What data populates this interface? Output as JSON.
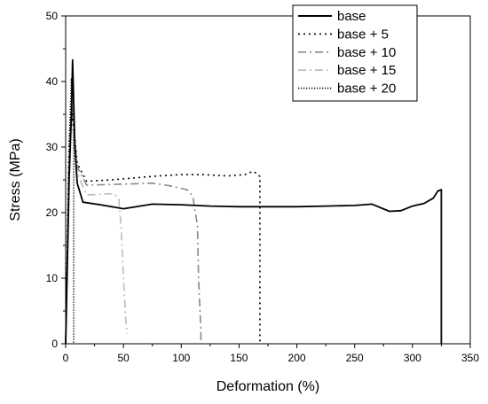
{
  "chart_data": {
    "type": "line",
    "title": "",
    "xlabel": "Deformation (%)",
    "ylabel": "Stress (MPa)",
    "xlim": [
      0,
      350
    ],
    "ylim": [
      0,
      50
    ],
    "xticks": [
      0,
      50,
      100,
      150,
      200,
      250,
      300,
      350
    ],
    "yticks": [
      0,
      10,
      20,
      30,
      40,
      50
    ],
    "grid": false,
    "legend_position": "top-right",
    "series": [
      {
        "name": "base",
        "color": "#000000",
        "dash": "solid",
        "x": [
          0,
          3,
          5,
          6,
          8,
          10,
          15,
          30,
          50,
          75,
          100,
          125,
          150,
          175,
          200,
          225,
          250,
          265,
          280,
          290,
          300,
          310,
          318,
          322,
          325,
          325
        ],
        "y": [
          0,
          25,
          35,
          43.3,
          30,
          24.5,
          21.6,
          21.2,
          20.6,
          21.3,
          21.2,
          21.0,
          20.9,
          20.9,
          20.9,
          21.0,
          21.1,
          21.3,
          20.2,
          20.3,
          21.0,
          21.4,
          22.2,
          23.3,
          23.5,
          0
        ]
      },
      {
        "name": "base + 5",
        "color": "#000000",
        "dash": "dot",
        "x": [
          0,
          3,
          5,
          7,
          10,
          18,
          40,
          60,
          80,
          100,
          120,
          140,
          155,
          162,
          165,
          168,
          168
        ],
        "y": [
          0,
          30,
          36.2,
          33,
          27.5,
          24.8,
          25.0,
          25.3,
          25.6,
          25.8,
          25.8,
          25.6,
          25.8,
          26.3,
          26.0,
          25.5,
          0
        ]
      },
      {
        "name": "base + 10",
        "color": "#888888",
        "dash": "dashdot",
        "x": [
          0,
          3,
          5,
          7,
          10,
          18,
          40,
          60,
          75,
          90,
          105,
          110,
          114,
          115,
          117,
          117
        ],
        "y": [
          0,
          28,
          35.5,
          33,
          27,
          24.2,
          24.3,
          24.4,
          24.5,
          24.1,
          23.5,
          22.5,
          18,
          10,
          2,
          0
        ]
      },
      {
        "name": "base + 15",
        "color": "#bbbbbb",
        "dash": "dashdot",
        "x": [
          0,
          3,
          5,
          7,
          10,
          18,
          30,
          42,
          46,
          48,
          50,
          52,
          53
        ],
        "y": [
          0,
          28,
          35.5,
          32,
          26,
          22.7,
          22.8,
          22.9,
          22,
          18,
          10,
          4,
          1.5
        ]
      },
      {
        "name": "base + 20",
        "color": "#000000",
        "dash": "finedot",
        "x": [
          0,
          3,
          5,
          6,
          7,
          7
        ],
        "y": [
          0,
          30,
          40.5,
          36,
          30,
          0
        ]
      }
    ]
  }
}
